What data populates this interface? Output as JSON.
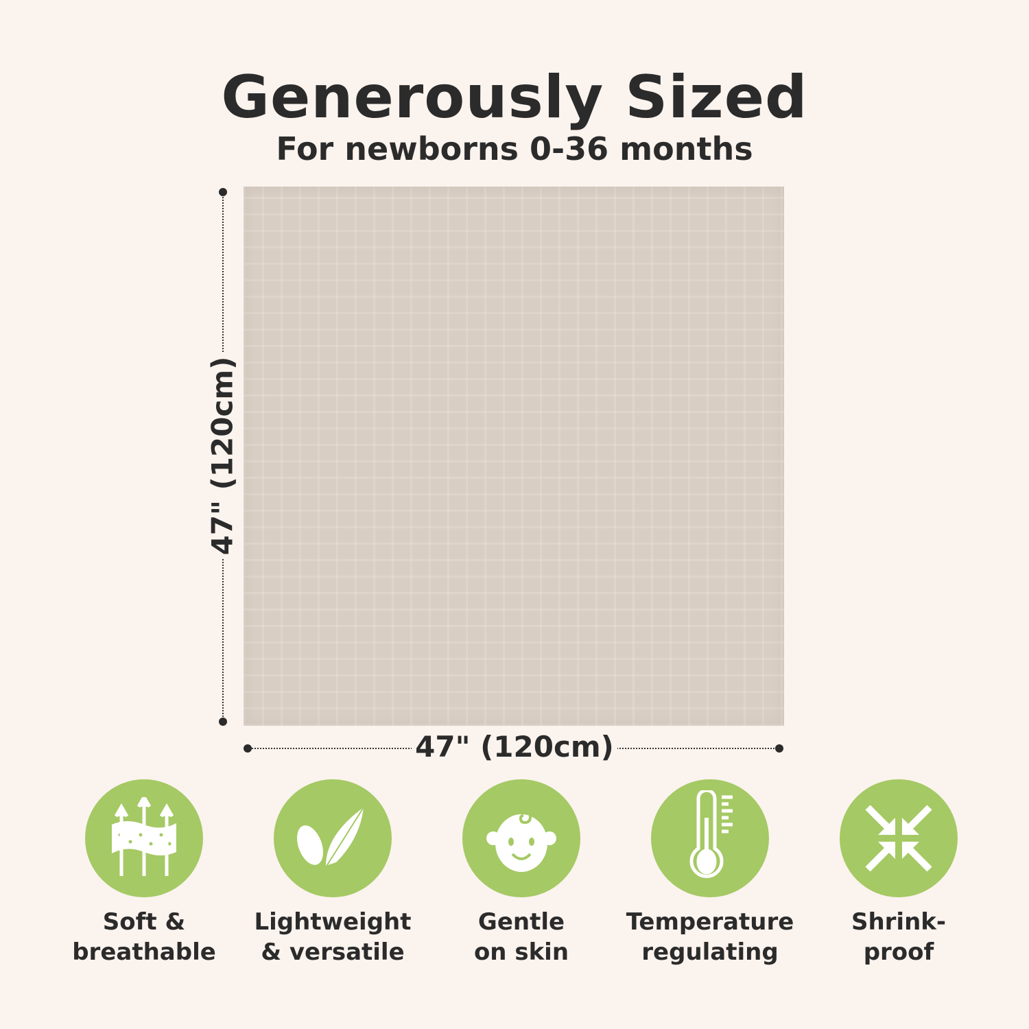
{
  "header": {
    "title": "Generously Sized",
    "subtitle": "For newborns 0-36 months"
  },
  "dimensions": {
    "width_label": "47\" (120cm)",
    "height_label": "47\" (120cm)"
  },
  "colors": {
    "background": "#fbf3ee",
    "accent_green": "#a5c964",
    "blanket": "#d9cec3",
    "text": "#2b2b2b"
  },
  "features": [
    {
      "icon": "breathable-fabric-icon",
      "line1": "Soft &",
      "line2": "breathable"
    },
    {
      "icon": "feather-icon",
      "line1": "Lightweight",
      "line2": "& versatile"
    },
    {
      "icon": "baby-face-icon",
      "line1": "Gentle",
      "line2": "on skin"
    },
    {
      "icon": "thermometer-icon",
      "line1": "Temperature",
      "line2": "regulating"
    },
    {
      "icon": "shrink-arrows-icon",
      "line1": "Shrink-",
      "line2": "proof"
    }
  ]
}
